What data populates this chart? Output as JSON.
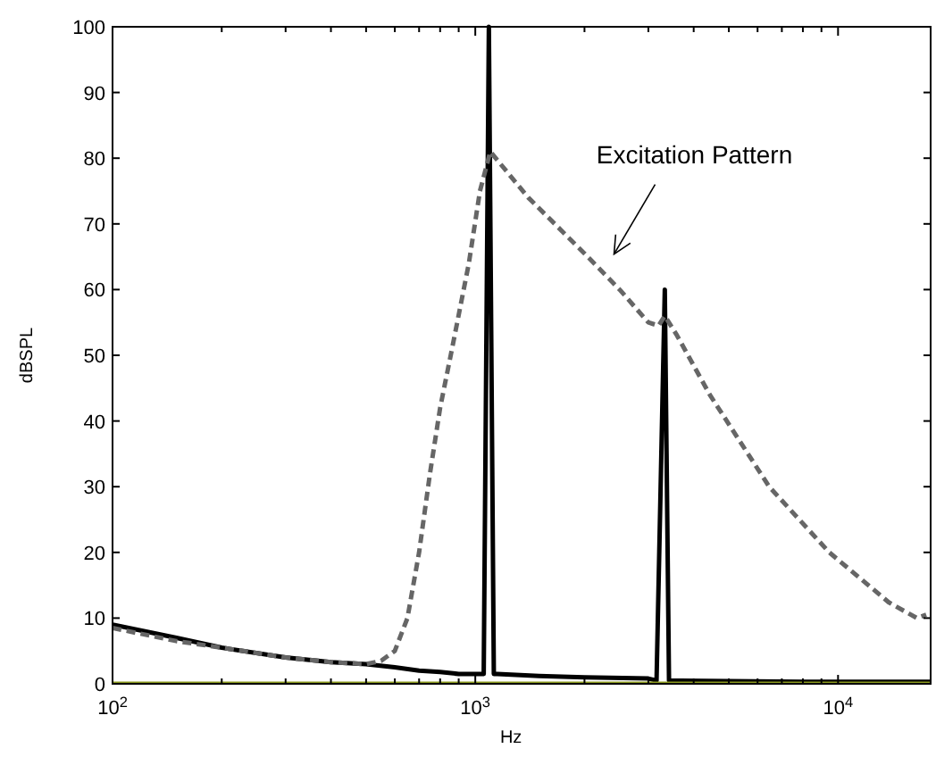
{
  "chart_data": {
    "type": "line",
    "xlabel": "Hz",
    "ylabel": "dBSPL",
    "log": "x",
    "grid": false,
    "xlim": [
      100,
      18000
    ],
    "ylim": [
      0,
      100
    ],
    "xticks": [
      {
        "value": 100,
        "label": "10$^{2}$"
      },
      {
        "value": 200,
        "label": null
      },
      {
        "value": 300,
        "label": null
      },
      {
        "value": 400,
        "label": null
      },
      {
        "value": 500,
        "label": null
      },
      {
        "value": 600,
        "label": null
      },
      {
        "value": 700,
        "label": null
      },
      {
        "value": 800,
        "label": null
      },
      {
        "value": 900,
        "label": null
      },
      {
        "value": 1000,
        "label": "10$^{3}$"
      },
      {
        "value": 2000,
        "label": null
      },
      {
        "value": 3000,
        "label": null
      },
      {
        "value": 4000,
        "label": null
      },
      {
        "value": 5000,
        "label": null
      },
      {
        "value": 6000,
        "label": null
      },
      {
        "value": 7000,
        "label": null
      },
      {
        "value": 8000,
        "label": null
      },
      {
        "value": 9000,
        "label": null
      },
      {
        "value": 10000,
        "label": "10$^{4}$"
      }
    ],
    "yticks": [
      0,
      10,
      20,
      30,
      40,
      50,
      60,
      70,
      80,
      90,
      100
    ],
    "series": [
      {
        "color": "#000000",
        "line_style": "solid",
        "x": [
          100,
          150,
          200,
          300,
          400,
          500,
          600,
          700,
          800,
          900,
          1000,
          1055,
          1090,
          1125,
          1150,
          1500,
          2000,
          3000,
          3160,
          3330,
          3420,
          5000,
          8000,
          18000
        ],
        "values": [
          9,
          7,
          5.5,
          4,
          3.3,
          3,
          2.5,
          2,
          1.8,
          1.5,
          1.5,
          1.5,
          100,
          1.5,
          1.5,
          1.2,
          1,
          0.8,
          0.5,
          60,
          0.5,
          0.4,
          0.3,
          0.3
        ]
      },
      {
        "color": "#666666",
        "line_style": "dashed",
        "x": [
          100,
          150,
          200,
          300,
          400,
          500,
          550,
          600,
          650,
          700,
          750,
          800,
          870,
          960,
          1030,
          1100,
          1400,
          2000,
          2500,
          3000,
          3200,
          3330,
          3600,
          4430,
          6460,
          9460,
          13800,
          16500,
          17500
        ],
        "values": [
          8.5,
          6.5,
          5.5,
          4,
          3.3,
          3,
          3.5,
          5,
          10,
          20,
          32,
          42,
          52,
          64,
          75,
          81,
          74,
          65.5,
          60,
          55,
          54.5,
          56,
          53,
          44,
          30,
          20,
          12.4,
          10,
          10.5
        ]
      },
      {
        "color": "#8c9a1e",
        "line_style": "solid",
        "x": [
          100,
          18000
        ],
        "values": [
          0,
          0
        ]
      }
    ],
    "annotations": [
      "Excitation Pattern"
    ]
  }
}
